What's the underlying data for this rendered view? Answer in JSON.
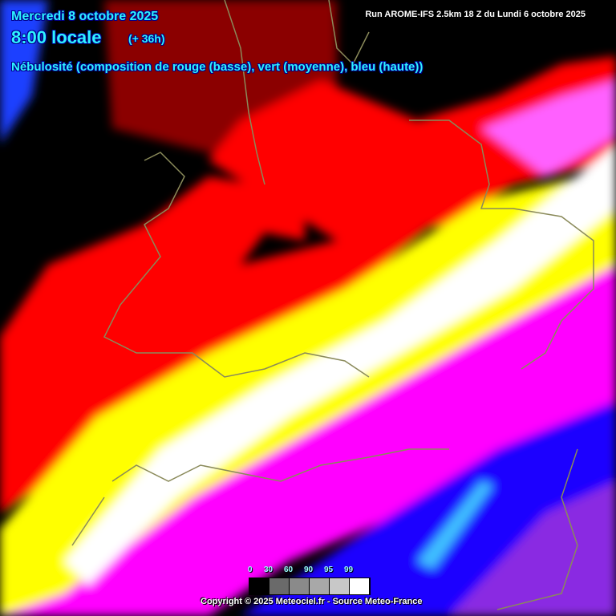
{
  "header": {
    "date": "Mercredi 8 octobre 2025",
    "time": "8:00 locale",
    "offset": "(+ 36h)",
    "parameter": "Nébulosité (composition de rouge (basse), vert (moyenne), bleu (haute))",
    "run": "Run AROME-IFS 2.5km 18 Z du Lundi 6 octobre 2025"
  },
  "legend": {
    "labels": [
      "0",
      "30",
      "60",
      "90",
      "95",
      "99"
    ],
    "colors": [
      "#000000",
      "#6a6a6a",
      "#8a8a8a",
      "#a8a8a8",
      "#c8c8c8",
      "#ffffff"
    ]
  },
  "footer": {
    "copyright": "Copyright © 2025 Meteociel.fr - Source Meteo-France"
  },
  "colors": {
    "low": "#ff0000",
    "mid": "#00ff00",
    "high": "#0000ff",
    "coast": "#8a8a5a"
  }
}
